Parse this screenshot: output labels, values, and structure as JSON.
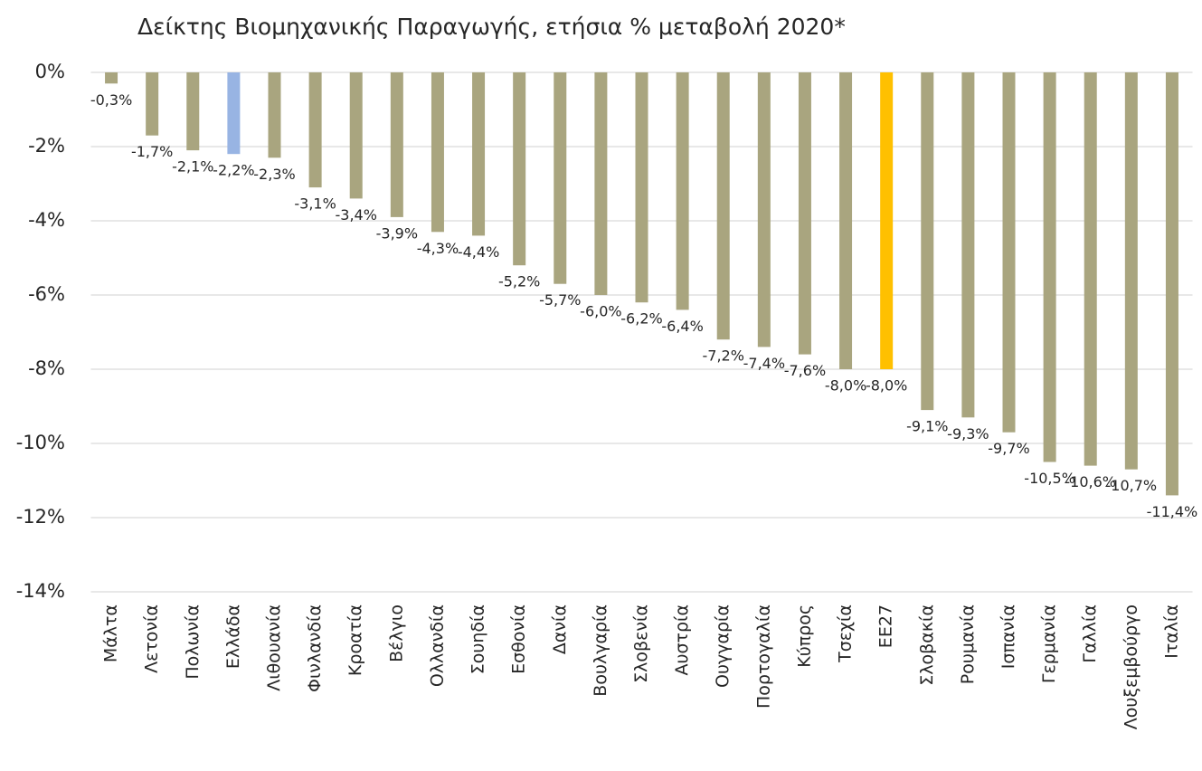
{
  "chart_data": {
    "type": "bar",
    "title": "Δείκτης Βιομηχανικής Παραγωγής, ετήσια % μεταβολή 2020*",
    "categories": [
      "Μάλτα",
      "Λετονία",
      "Πολωνία",
      "Ελλάδα",
      "Λιθουανία",
      "Φινλανδία",
      "Κροατία",
      "Βέλγιο",
      "Ολλανδία",
      "Σουηδία",
      "Εσθονία",
      "Δανία",
      "Βουλγαρία",
      "Σλοβενία",
      "Αυστρία",
      "Ουγγαρία",
      "Πορτογαλία",
      "Κύπρος",
      "Τσεχία",
      "ΕΕ27",
      "Σλοβακία",
      "Ρουμανία",
      "Ισπανία",
      "Γερμανία",
      "Γαλλία",
      "Λουξεμβούργο",
      "Ιταλία"
    ],
    "values": [
      -0.3,
      -1.7,
      -2.1,
      -2.2,
      -2.3,
      -3.1,
      -3.4,
      -3.9,
      -4.3,
      -4.4,
      -5.2,
      -5.7,
      -6.0,
      -6.2,
      -6.4,
      -7.2,
      -7.4,
      -7.6,
      -8.0,
      -8.0,
      -9.1,
      -9.3,
      -9.7,
      -10.5,
      -10.6,
      -10.7,
      -11.4
    ],
    "value_labels": [
      "-0,3%",
      "-1,7%",
      "-2,1%",
      "-2,2%",
      "-2,3%",
      "-3,1%",
      "-3,4%",
      "-3,9%",
      "-4,3%",
      "-4,4%",
      "-5,2%",
      "-5,7%",
      "-6,0%",
      "-6,2%",
      "-6,4%",
      "-7,2%",
      "-7,4%",
      "-7,6%",
      "-8,0%",
      "-8,0%",
      "-9,1%",
      "-9,3%",
      "-9,7%",
      "-10,5%",
      "-10,6%",
      "-10,7%",
      "-11,4%"
    ],
    "colors": [
      "#a9a57f",
      "#a9a57f",
      "#a9a57f",
      "#98b4e3",
      "#a9a57f",
      "#a9a57f",
      "#a9a57f",
      "#a9a57f",
      "#a9a57f",
      "#a9a57f",
      "#a9a57f",
      "#a9a57f",
      "#a9a57f",
      "#a9a57f",
      "#a9a57f",
      "#a9a57f",
      "#a9a57f",
      "#a9a57f",
      "#a9a57f",
      "#ffc000",
      "#a9a57f",
      "#a9a57f",
      "#a9a57f",
      "#a9a57f",
      "#a9a57f",
      "#a9a57f",
      "#a9a57f"
    ],
    "ylim": [
      -14,
      0
    ],
    "yticks": [
      {
        "value": 0,
        "label": "0%"
      },
      {
        "value": -2,
        "label": "-2%"
      },
      {
        "value": -4,
        "label": "-4%"
      },
      {
        "value": -6,
        "label": "-6%"
      },
      {
        "value": -8,
        "label": "-8%"
      },
      {
        "value": -10,
        "label": "-10%"
      },
      {
        "value": -12,
        "label": "-12%"
      },
      {
        "value": -14,
        "label": "-14%"
      }
    ],
    "grid": true
  }
}
